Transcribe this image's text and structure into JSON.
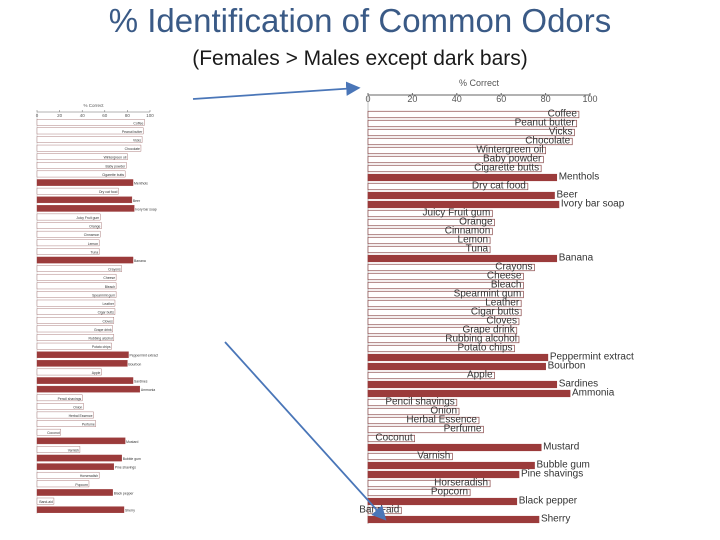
{
  "header": {
    "title": "% Identification of Common Odors",
    "subtitle": "(Females > Males except dark bars)"
  },
  "colors": {
    "light_bar": "#ffffff",
    "dark_bar": "#9b3b3b",
    "arrow": "#4a76b8",
    "title": "#3a5a86"
  },
  "chart_data": {
    "type": "bar",
    "orientation": "horizontal",
    "xlabel": "% Correct",
    "xlim": [
      0,
      100
    ],
    "xticks": [
      0,
      20,
      40,
      60,
      80,
      100
    ],
    "grid": false,
    "legend": "none",
    "categories": [
      {
        "left": "Coffee",
        "value": 95,
        "dark": false
      },
      {
        "left": "Peanut butter",
        "value": 94,
        "dark": false
      },
      {
        "left": "Vicks",
        "value": 93,
        "dark": false
      },
      {
        "left": "Chocolate",
        "value": 92,
        "dark": false
      },
      {
        "left": "Wintergreen oil",
        "value": 80,
        "dark": false
      },
      {
        "left": "Baby powder",
        "value": 79,
        "dark": false
      },
      {
        "left": "Cigarette butts",
        "value": 78,
        "dark": false
      },
      {
        "right": "Menthols",
        "value": 85,
        "dark": true
      },
      {
        "left": "Dry cat food",
        "value": 72,
        "dark": false
      },
      {
        "right": "Beer",
        "value": 84,
        "dark": true
      },
      {
        "right": "Ivory bar soap",
        "value": 86,
        "dark": true
      },
      {
        "left": "Juicy Fruit gum",
        "value": 56,
        "dark": false
      },
      {
        "left": "Orange",
        "value": 57,
        "dark": false
      },
      {
        "left": "Cinnamon",
        "value": 56,
        "dark": false
      },
      {
        "left": "Lemon",
        "value": 55,
        "dark": false
      },
      {
        "left": "Tuna",
        "value": 55,
        "dark": false
      },
      {
        "right": "Banana",
        "value": 85,
        "dark": true
      },
      {
        "left": "Crayons",
        "value": 75,
        "dark": false
      },
      {
        "left": "Cheese",
        "value": 70,
        "dark": false
      },
      {
        "left": "Bleach",
        "value": 70,
        "dark": false
      },
      {
        "left": "Spearmint gum",
        "value": 70,
        "dark": false
      },
      {
        "left": "Leather",
        "value": 69,
        "dark": false
      },
      {
        "left": "Cigar butts",
        "value": 69,
        "dark": false
      },
      {
        "left": "Cloves",
        "value": 68,
        "dark": false
      },
      {
        "left": "Grape drink",
        "value": 67,
        "dark": false
      },
      {
        "left": "Rubbing alcohol",
        "value": 68,
        "dark": false
      },
      {
        "left": "Potato chips",
        "value": 66,
        "dark": false
      },
      {
        "right": "Peppermint extract",
        "value": 81,
        "dark": true
      },
      {
        "right": "Bourbon",
        "value": 80,
        "dark": true
      },
      {
        "left": "Apple",
        "value": 57,
        "dark": false
      },
      {
        "right": "Sardines",
        "value": 85,
        "dark": true
      },
      {
        "right": "Ammonia",
        "value": 91,
        "dark": true
      },
      {
        "left": "Pencil shavings",
        "value": 40,
        "dark": false
      },
      {
        "left": "Onion",
        "value": 41,
        "dark": false
      },
      {
        "left": "Herbal Essence",
        "value": 50,
        "dark": false
      },
      {
        "left": "Perfume",
        "value": 52,
        "dark": false
      },
      {
        "left": "Coconut",
        "value": 21,
        "dark": false
      },
      {
        "right": "Mustard",
        "value": 78,
        "dark": true
      },
      {
        "left": "Varnish",
        "value": 38,
        "dark": false
      },
      {
        "right": "Bubble gum",
        "value": 75,
        "dark": true
      },
      {
        "right": "Pine shavings",
        "value": 68,
        "dark": true
      },
      {
        "left": "Horseradish",
        "value": 55,
        "dark": false
      },
      {
        "left": "Popcorn",
        "value": 46,
        "dark": false
      },
      {
        "right": "Black pepper",
        "value": 67,
        "dark": true
      },
      {
        "left": "Band-aid",
        "value": 15,
        "dark": false
      },
      {
        "right": "Sherry",
        "value": 77,
        "dark": true
      }
    ]
  }
}
